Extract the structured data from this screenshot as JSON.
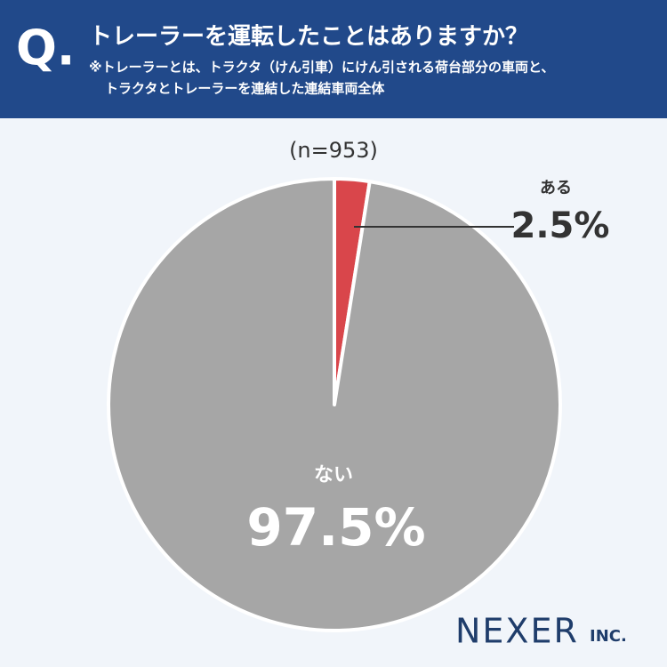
{
  "header": {
    "marker": "Q."
  },
  "chart_data": {
    "type": "pie",
    "title": "トレーラーを運転したことはありますか？",
    "notes": [
      "※トレーラーとは、トラクタ（けん引車）にけん引される荷台部分の車両と、",
      "トラクタとトレーラーを連結した連結車両全体"
    ],
    "sample": "(n=953)",
    "categories": [
      "ある",
      "ない"
    ],
    "values": [
      2.5,
      97.5
    ],
    "value_labels": [
      "2.5%",
      "97.5%"
    ],
    "colors": [
      "#d9464b",
      "#a6a6a6"
    ]
  },
  "logo": {
    "name": "NEXER",
    "suffix": "INC."
  }
}
